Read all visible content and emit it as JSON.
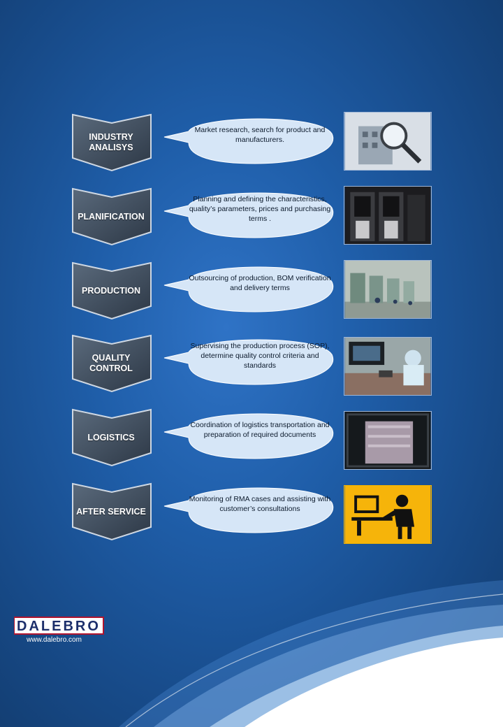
{
  "colors": {
    "background": "#1f5ea9",
    "chevron": "#3e4d5f",
    "bubble": "#d6e6f7",
    "logo_red": "#b0142e"
  },
  "steps": [
    {
      "label": "INDUSTRY\nANALISYS",
      "description": "Market research, search for product and manufacturers.",
      "image": "magnifier-building-icon"
    },
    {
      "label": "PLANIFICATION",
      "description": "Planning and defining the characteristics, quality’s parameters, prices and purchasing terms .",
      "image": "server-cabinets-photo"
    },
    {
      "label": "PRODUCTION",
      "description": "Outsourcing of production, BOM verification and delivery terms",
      "image": "factory-floor-photo"
    },
    {
      "label": "QUALITY\nCONTROL",
      "description": "Supervising the production process (SOP), determine quality control criteria and standards",
      "image": "inspection-lab-photo"
    },
    {
      "label": "LOGISTICS",
      "description": "Coordination of logistics transportation and preparation of required documents",
      "image": "container-cargo-photo"
    },
    {
      "label": "AFTER SERVICE",
      "description": "Monitoring of RMA cases and assisting with customer’s consultations",
      "image": "support-agent-icon"
    }
  ],
  "footer": {
    "logo_text": "DALEBRO",
    "url": "www.dalebro.com"
  }
}
